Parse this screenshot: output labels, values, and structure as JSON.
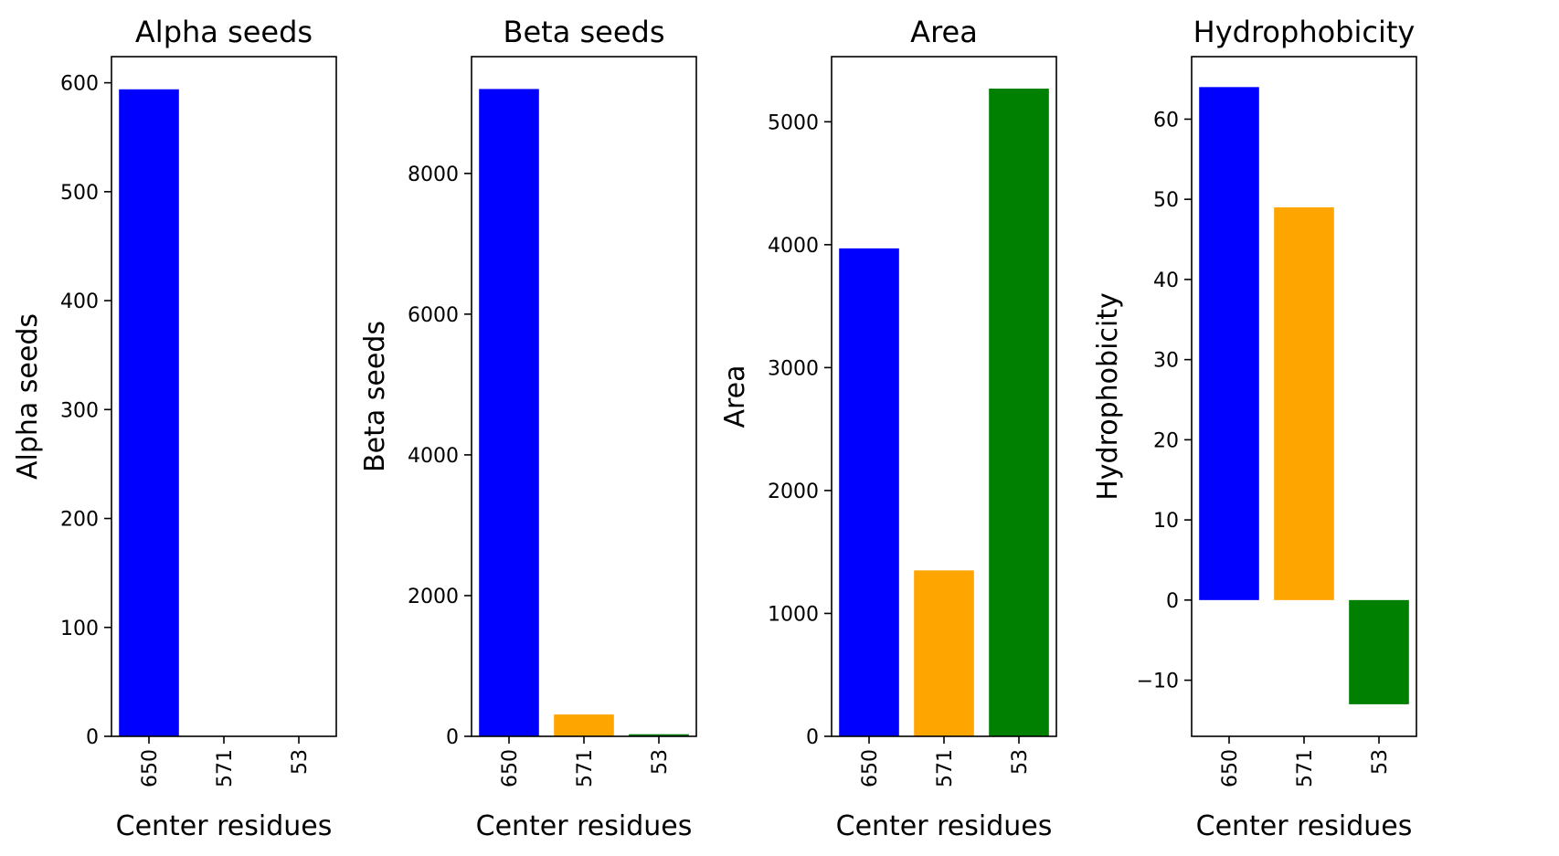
{
  "chart_data": [
    {
      "type": "bar",
      "title": "Alpha seeds",
      "xlabel": "Center residues",
      "ylabel": "Alpha seeds",
      "categories": [
        "650",
        "571",
        "53"
      ],
      "values": [
        594,
        0,
        0
      ],
      "colors": [
        "#0000ff",
        "#ffa500",
        "#008000"
      ],
      "ylim": [
        0,
        624
      ],
      "yticks": [
        0,
        100,
        200,
        300,
        400,
        500,
        600
      ],
      "grid": false
    },
    {
      "type": "bar",
      "title": "Beta seeds",
      "xlabel": "Center residues",
      "ylabel": "Beta seeds",
      "categories": [
        "650",
        "571",
        "53"
      ],
      "values": [
        9200,
        310,
        30
      ],
      "colors": [
        "#0000ff",
        "#ffa500",
        "#008000"
      ],
      "ylim": [
        0,
        9660
      ],
      "yticks": [
        0,
        2000,
        4000,
        6000,
        8000
      ],
      "grid": false
    },
    {
      "type": "bar",
      "title": "Area",
      "xlabel": "Center residues",
      "ylabel": "Area",
      "categories": [
        "650",
        "571",
        "53"
      ],
      "values": [
        3970,
        1350,
        5270
      ],
      "colors": [
        "#0000ff",
        "#ffa500",
        "#008000"
      ],
      "ylim": [
        0,
        5530
      ],
      "yticks": [
        0,
        1000,
        2000,
        3000,
        4000,
        5000
      ],
      "grid": false
    },
    {
      "type": "bar",
      "title": "Hydrophobicity",
      "xlabel": "Center residues",
      "ylabel": "Hydrophobicity",
      "categories": [
        "650",
        "571",
        "53"
      ],
      "values": [
        64,
        49,
        -13
      ],
      "colors": [
        "#0000ff",
        "#ffa500",
        "#008000"
      ],
      "ylim": [
        -17,
        67.8
      ],
      "yticks": [
        -10,
        0,
        10,
        20,
        30,
        40,
        50,
        60
      ],
      "ytick_labels": [
        "−10",
        "0",
        "10",
        "20",
        "30",
        "40",
        "50",
        "60"
      ],
      "grid": false
    }
  ]
}
